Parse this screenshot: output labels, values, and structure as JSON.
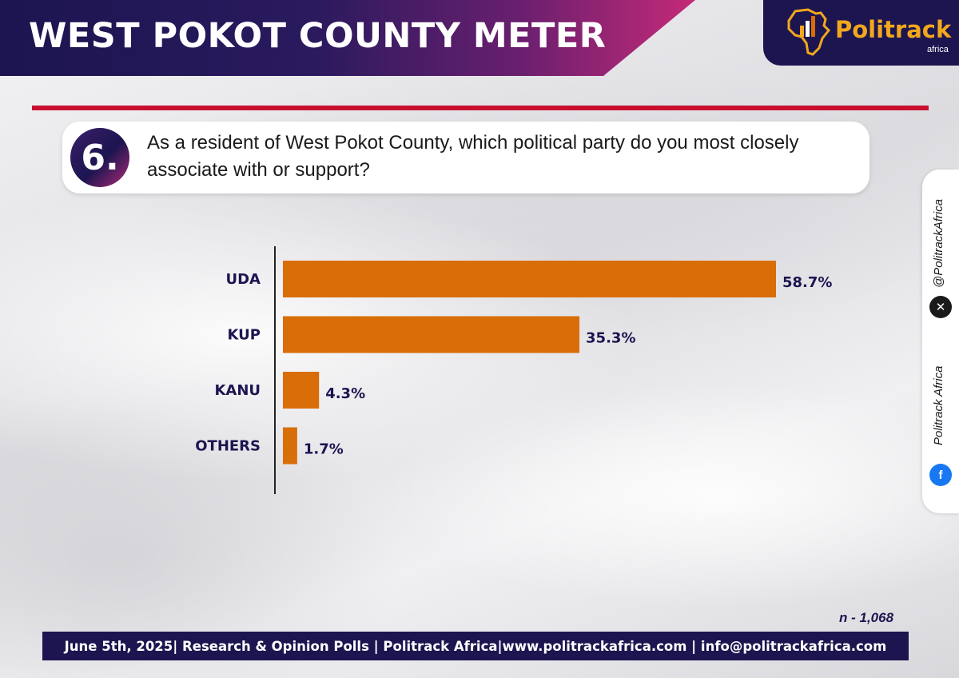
{
  "header": {
    "title": "WEST POKOT COUNTY METER"
  },
  "brand": {
    "name": "Politrack",
    "sub": "africa"
  },
  "question": {
    "number": "6.",
    "text": "As a resident of West Pokot County, which political party do you most closely associate with or support?"
  },
  "chart_data": {
    "type": "bar",
    "orientation": "horizontal",
    "categories": [
      "UDA",
      "KUP",
      "KANU",
      "OTHERS"
    ],
    "values": [
      58.7,
      35.3,
      4.3,
      1.7
    ],
    "value_labels": [
      "58.7%",
      "35.3%",
      "4.3%",
      "1.7%"
    ],
    "xlim": [
      0,
      58.7
    ],
    "grid": false,
    "legend": "none",
    "bar_color": "#d96d08"
  },
  "sample": {
    "label": "n - 1,068"
  },
  "social": {
    "x_handle": "@PolitrackAfrica",
    "facebook_handle": "Politrack Africa"
  },
  "footer": {
    "text": "June 5th, 2025| Research & Opinion Polls | Politrack Africa|www.politrackafrica.com | info@politrackafrica.com"
  },
  "colors": {
    "navy": "#1c1550",
    "accent_red": "#c8102e",
    "bar": "#d96d08",
    "brand_gold": "#f2a81c"
  }
}
